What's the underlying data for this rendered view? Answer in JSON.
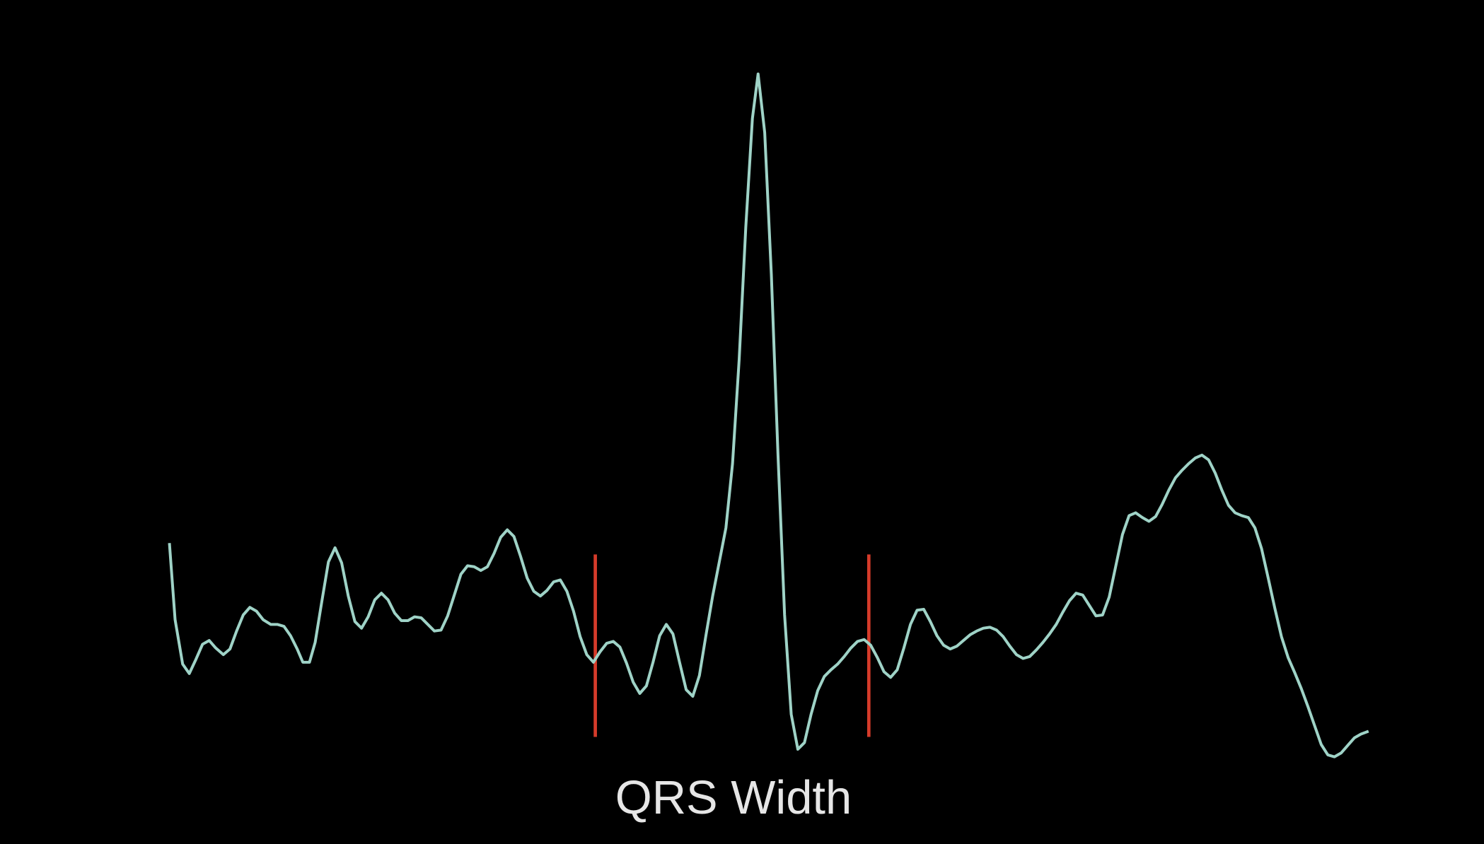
{
  "chart_data": {
    "type": "line",
    "xlabel": "QRS Width",
    "xlim": [
      0,
      1568
    ],
    "ylim": [
      0,
      892
    ],
    "x": [
      179,
      185,
      193,
      200,
      207,
      214,
      221,
      228,
      236,
      243,
      250,
      257,
      264,
      271,
      278,
      286,
      293,
      300,
      307,
      314,
      320,
      327,
      333,
      340,
      347,
      354,
      361,
      368,
      375,
      382,
      389,
      396,
      403,
      410,
      417,
      424,
      431,
      438,
      445,
      452,
      459,
      466,
      473,
      480,
      487,
      494,
      501,
      508,
      515,
      522,
      529,
      536,
      543,
      550,
      557,
      564,
      571,
      578,
      585,
      592,
      599,
      606,
      613,
      620,
      627,
      634,
      641,
      648,
      655,
      662,
      669,
      676,
      683,
      690,
      697,
      704,
      711,
      718,
      725,
      732,
      739,
      746,
      753,
      760,
      767,
      774,
      781,
      788,
      795,
      801,
      808,
      815,
      822,
      829,
      836,
      843,
      850,
      857,
      864,
      871,
      878,
      885,
      892,
      899,
      906,
      913,
      920,
      927,
      934,
      941,
      948,
      955,
      962,
      969,
      976,
      983,
      990,
      997,
      1004,
      1011,
      1018,
      1025,
      1032,
      1039,
      1046,
      1053,
      1060,
      1067,
      1074,
      1081,
      1088,
      1095,
      1102,
      1109,
      1116,
      1123,
      1130,
      1137,
      1144,
      1151,
      1158,
      1165,
      1172,
      1179,
      1186,
      1193,
      1200,
      1207,
      1214,
      1221,
      1228,
      1235,
      1242,
      1249,
      1256,
      1263,
      1270,
      1277,
      1284,
      1291,
      1298,
      1305,
      1312,
      1319,
      1326,
      1333,
      1340,
      1347,
      1354,
      1361,
      1368,
      1375,
      1382,
      1389,
      1396,
      1403,
      1410,
      1417,
      1424,
      1431,
      1438,
      1446
    ],
    "series": [
      {
        "color": "#9fd3c7",
        "values": [
          318,
          237,
          190,
          180,
          195,
          211,
          215,
          207,
          200,
          206,
          225,
          242,
          250,
          246,
          237,
          232,
          232,
          230,
          220,
          206,
          192,
          192,
          213,
          256,
          298,
          313,
          297,
          262,
          235,
          228,
          240,
          258,
          265,
          258,
          244,
          236,
          236,
          240,
          239,
          232,
          225,
          226,
          241,
          263,
          285,
          294,
          293,
          289,
          293,
          307,
          324,
          332,
          325,
          304,
          281,
          267,
          262,
          268,
          277,
          279,
          267,
          246,
          219,
          200,
          192,
          203,
          212,
          214,
          208,
          191,
          171,
          159,
          167,
          192,
          220,
          232,
          222,
          192,
          163,
          156,
          178,
          221,
          262,
          298,
          334,
          402,
          512,
          652,
          767,
          814,
          752,
          602,
          412,
          242,
          137,
          100,
          107,
          137,
          162,
          177,
          184,
          190,
          198,
          207,
          214,
          216,
          210,
          197,
          182,
          176,
          184,
          207,
          232,
          247,
          248,
          235,
          220,
          210,
          206,
          209,
          215,
          221,
          225,
          228,
          229,
          226,
          219,
          209,
          200,
          196,
          198,
          205,
          213,
          222,
          232,
          245,
          257,
          265,
          263,
          252,
          241,
          242,
          261,
          294,
          327,
          347,
          350,
          345,
          341,
          346,
          359,
          374,
          387,
          395,
          402,
          408,
          411,
          406,
          392,
          374,
          358,
          350,
          347,
          345,
          334,
          312,
          281,
          249,
          219,
          197,
          181,
          164,
          145,
          125,
          105,
          94,
          92,
          96,
          104,
          112,
          116,
          119
        ]
      }
    ],
    "markers": [
      629,
      918
    ],
    "marker_range": [
      113,
      306
    ],
    "marker_color": "#d63b2a"
  }
}
